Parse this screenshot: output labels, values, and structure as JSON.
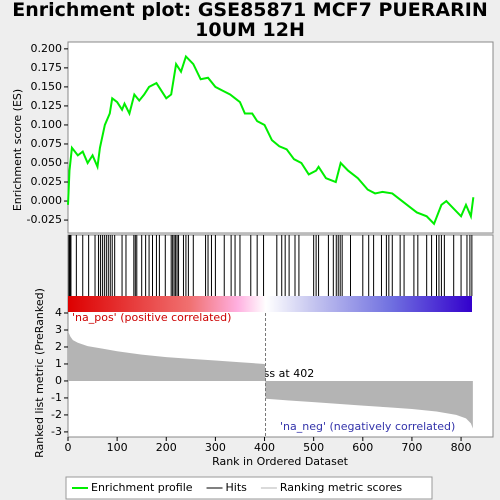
{
  "chart_data": [
    {
      "type": "line",
      "title": "Enrichment plot: GSE85871 MCF7 PUERARIN 10UM 12H",
      "ylabel": "Enrichment score (ES)",
      "ylim": [
        -0.042,
        0.209
      ],
      "yticks": [
        {
          "value": -0.025,
          "label": "-0.025"
        },
        {
          "value": 0,
          "label": "0.000"
        },
        {
          "value": 0.025,
          "label": "0.025"
        },
        {
          "value": 0.05,
          "label": "0.050"
        },
        {
          "value": 0.075,
          "label": "0.075"
        },
        {
          "value": 0.1,
          "label": "0.100"
        },
        {
          "value": 0.125,
          "label": "0.125"
        },
        {
          "value": 0.15,
          "label": "0.150"
        },
        {
          "value": 0.175,
          "label": "0.175"
        },
        {
          "value": 0.2,
          "label": "0.200"
        }
      ],
      "series": [
        {
          "name": "Enrichment profile",
          "color": "#00ee00",
          "x": [
            0,
            3,
            8,
            20,
            30,
            40,
            50,
            60,
            65,
            75,
            85,
            90,
            100,
            110,
            115,
            125,
            135,
            145,
            155,
            165,
            180,
            190,
            200,
            210,
            220,
            230,
            240,
            255,
            270,
            285,
            300,
            315,
            330,
            340,
            350,
            360,
            375,
            385,
            400,
            415,
            430,
            445,
            460,
            475,
            490,
            505,
            510,
            525,
            545,
            555,
            570,
            590,
            610,
            625,
            640,
            660,
            680,
            700,
            710,
            730,
            745,
            760,
            770,
            785,
            800,
            810,
            820,
            825
          ],
          "values": [
            -0.005,
            0.04,
            0.07,
            0.06,
            0.065,
            0.05,
            0.06,
            0.045,
            0.07,
            0.1,
            0.115,
            0.135,
            0.13,
            0.12,
            0.128,
            0.115,
            0.14,
            0.132,
            0.14,
            0.15,
            0.155,
            0.145,
            0.135,
            0.14,
            0.18,
            0.17,
            0.19,
            0.18,
            0.16,
            0.162,
            0.15,
            0.145,
            0.14,
            0.135,
            0.13,
            0.115,
            0.115,
            0.105,
            0.1,
            0.08,
            0.072,
            0.068,
            0.055,
            0.05,
            0.035,
            0.04,
            0.045,
            0.03,
            0.025,
            0.05,
            0.04,
            0.03,
            0.015,
            0.01,
            0.012,
            0.01,
            0.0,
            -0.01,
            -0.015,
            -0.02,
            -0.03,
            -0.005,
            0.0,
            -0.01,
            -0.02,
            -0.005,
            -0.02,
            0.005
          ]
        }
      ]
    },
    {
      "type": "hits",
      "series": [
        {
          "name": "Hits",
          "color": "#000000",
          "x": [
            2,
            4,
            6,
            17,
            30,
            42,
            55,
            62,
            66,
            70,
            74,
            78,
            82,
            86,
            90,
            95,
            110,
            118,
            134,
            137,
            140,
            150,
            158,
            165,
            172,
            180,
            186,
            198,
            210,
            213,
            216,
            219,
            222,
            225,
            235,
            240,
            245,
            255,
            280,
            285,
            292,
            300,
            318,
            332,
            340,
            350,
            372,
            385,
            398,
            425,
            435,
            442,
            450,
            462,
            470,
            500,
            505,
            510,
            530,
            540,
            546,
            550,
            554,
            558,
            575,
            600,
            612,
            622,
            638,
            648,
            653,
            660,
            676,
            684,
            704,
            712,
            730,
            740,
            750,
            755,
            760,
            766,
            785,
            800,
            812,
            818,
            822
          ]
        }
      ]
    },
    {
      "type": "area",
      "ylabel": "Ranked list metric (PreRanked)",
      "xlabel": "Rank in Ordered Dataset",
      "xlim": [
        0,
        865
      ],
      "xticks": [
        0,
        100,
        200,
        300,
        400,
        500,
        600,
        700,
        800
      ],
      "ylim": [
        -3.3,
        4
      ],
      "yticks": [
        -3,
        -2,
        -1,
        0,
        1,
        2,
        3,
        4
      ],
      "annotations": [
        "'na_pos' (positive correlated)",
        "'na_neg' (negatively correlated)",
        "Zero cross at 402"
      ],
      "zero_cross": 402,
      "series": [
        {
          "name": "Ranking metric scores",
          "color": "#b4b4b4",
          "x": [
            0,
            2,
            5,
            10,
            20,
            40,
            70,
            100,
            150,
            200,
            250,
            300,
            350,
            400,
            401,
            402,
            403,
            450,
            500,
            550,
            600,
            650,
            700,
            750,
            790,
            810,
            820,
            824
          ],
          "values": [
            2.95,
            2.8,
            2.6,
            2.4,
            2.25,
            2.05,
            1.9,
            1.75,
            1.55,
            1.4,
            1.3,
            1.2,
            1.1,
            1.0,
            0.95,
            -1.0,
            -1.05,
            -1.15,
            -1.25,
            -1.35,
            -1.45,
            -1.55,
            -1.65,
            -1.8,
            -2.0,
            -2.2,
            -2.5,
            -2.8
          ]
        }
      ]
    }
  ]
}
